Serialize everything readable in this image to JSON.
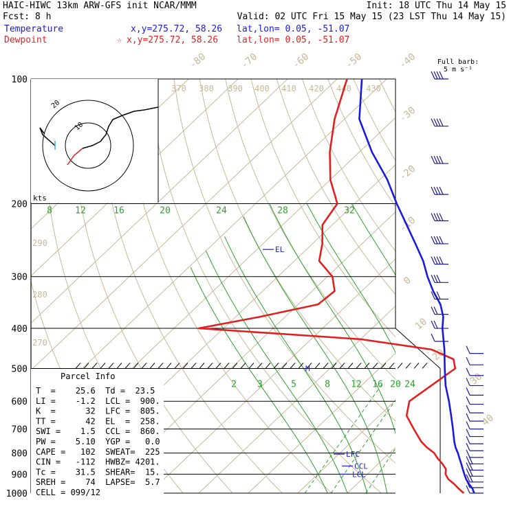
{
  "header": {
    "title": "HAIC-HIWC 13km ARW-GFS init   NCAR/MMM",
    "init": "Init: 18 UTC Thu 14 May 15",
    "fcst": "Fcst:   8 h",
    "valid": "Valid: 02 UTC Fri 15 May 15 (23 LST Thu 14 May 15)",
    "temp_label": "Temperature",
    "temp_coords": "x,y=275.72, 58.26",
    "temp_latlon": "lat,lon=  0.05, -51.07",
    "dew_label": "Dewpoint",
    "dew_coords": "x,y=275.72, 58.26",
    "dew_latlon": "lat,lon=  0.05, -51.07",
    "barb_legend_1": "Full barb:",
    "barb_legend_2": "5 m s⁻¹"
  },
  "colors": {
    "temperature": "#1a1adc",
    "dewpoint": "#e02020",
    "dry_adiabat": "#c8b89a",
    "moist_adiabat": "#2ca02c",
    "mixing_ratio": "#2ca02c",
    "isotherm": "#c8b89a",
    "wind": "#1a1a8c",
    "hodo_marker": "#33aaff"
  },
  "parcel_info": {
    "heading": "Parcel Info",
    "rows": [
      "T  =    25.6  Td =  23.5",
      "LI =    -1.2  LCL =  900.",
      "K  =      32  LFC =  805.",
      "TT =      42  EL  =  258.",
      "SWI =    1.5  CCL =  860.",
      "PW =    5.10  YGP =   0.0",
      "CAPE =   102  SWEAT=  225",
      "CIN =   -112  HWBZ= 4201.",
      "Tc =    31.5  SHEAR=  15.",
      "SREH =    74  LAPSE=  5.7",
      "CELL = 099/12"
    ]
  },
  "hodograph": {
    "kts_label": "kts",
    "ring_labels": [
      "10",
      "20"
    ]
  },
  "chart_data": {
    "type": "skew-t log-p",
    "pressure_levels": [
      100,
      200,
      300,
      400,
      500,
      600,
      700,
      800,
      900,
      1000
    ],
    "pressure_ticks": [
      "100",
      "200",
      "300",
      "400",
      "500",
      "600",
      "700",
      "800",
      "900",
      "1000"
    ],
    "isotherm_labels": [
      "-80",
      "-70",
      "-60",
      "-50",
      "-40",
      "-30",
      "-20",
      "-10",
      "0",
      "10",
      "20",
      "30",
      "40"
    ],
    "dry_adiabat_labels": [
      "370",
      "380",
      "390",
      "400",
      "410",
      "420",
      "430",
      "440",
      "290",
      "280",
      "270"
    ],
    "moist_adiabat_labels": [
      "8",
      "12",
      "16",
      "20",
      "24",
      "28",
      "32"
    ],
    "mixing_ratio_labels": [
      "2",
      "3",
      "5",
      "8",
      "12",
      "16",
      "20",
      "24"
    ],
    "markers": [
      "EL",
      "M",
      "LFC",
      "CCL",
      "LCL"
    ],
    "temperature_profile": {
      "name": "Temperature",
      "p": [
        1000,
        975,
        950,
        925,
        900,
        875,
        850,
        825,
        800,
        775,
        750,
        700,
        650,
        600,
        550,
        500,
        450,
        400,
        375,
        350,
        325,
        300,
        275,
        250,
        225,
        200,
        175,
        150,
        125,
        100
      ],
      "t": [
        25.6,
        24.3,
        22.6,
        21.0,
        19.6,
        18.2,
        16.8,
        15.3,
        13.8,
        12.1,
        10.6,
        7.7,
        4.5,
        1.0,
        -3.0,
        -6.8,
        -10.9,
        -15.8,
        -18.1,
        -21.3,
        -25.6,
        -29.8,
        -34.0,
        -39.2,
        -45.0,
        -51.5,
        -58.5,
        -67.5,
        -77.0,
        -85.0
      ]
    },
    "dewpoint_profile": {
      "name": "Dewpoint",
      "p": [
        1000,
        975,
        950,
        925,
        900,
        875,
        850,
        825,
        800,
        775,
        750,
        700,
        650,
        600,
        550,
        500,
        475,
        450,
        425,
        400,
        375,
        350,
        325,
        300,
        275,
        250,
        225,
        200,
        175,
        150,
        125,
        100
      ],
      "td": [
        23.5,
        21.5,
        19.6,
        17.4,
        15.8,
        14.8,
        13.0,
        10.9,
        9.0,
        6.3,
        3.9,
        -0.2,
        -4.5,
        -7.0,
        -5.9,
        -4.7,
        -7.0,
        -13.5,
        -30.0,
        -65.0,
        -55.0,
        -46.0,
        -45.5,
        -49.0,
        -55.0,
        -58.0,
        -62.0,
        -63.5,
        -70.0,
        -76.0,
        -82.0,
        -88.0
      ]
    },
    "wind_speeds_kts": [
      12,
      14,
      15,
      16,
      16,
      15,
      14,
      12,
      10,
      9,
      8,
      8,
      8,
      8,
      9,
      9,
      10,
      11,
      12,
      14,
      18,
      22,
      26,
      32,
      36,
      40,
      44,
      46,
      48,
      50,
      52
    ]
  }
}
